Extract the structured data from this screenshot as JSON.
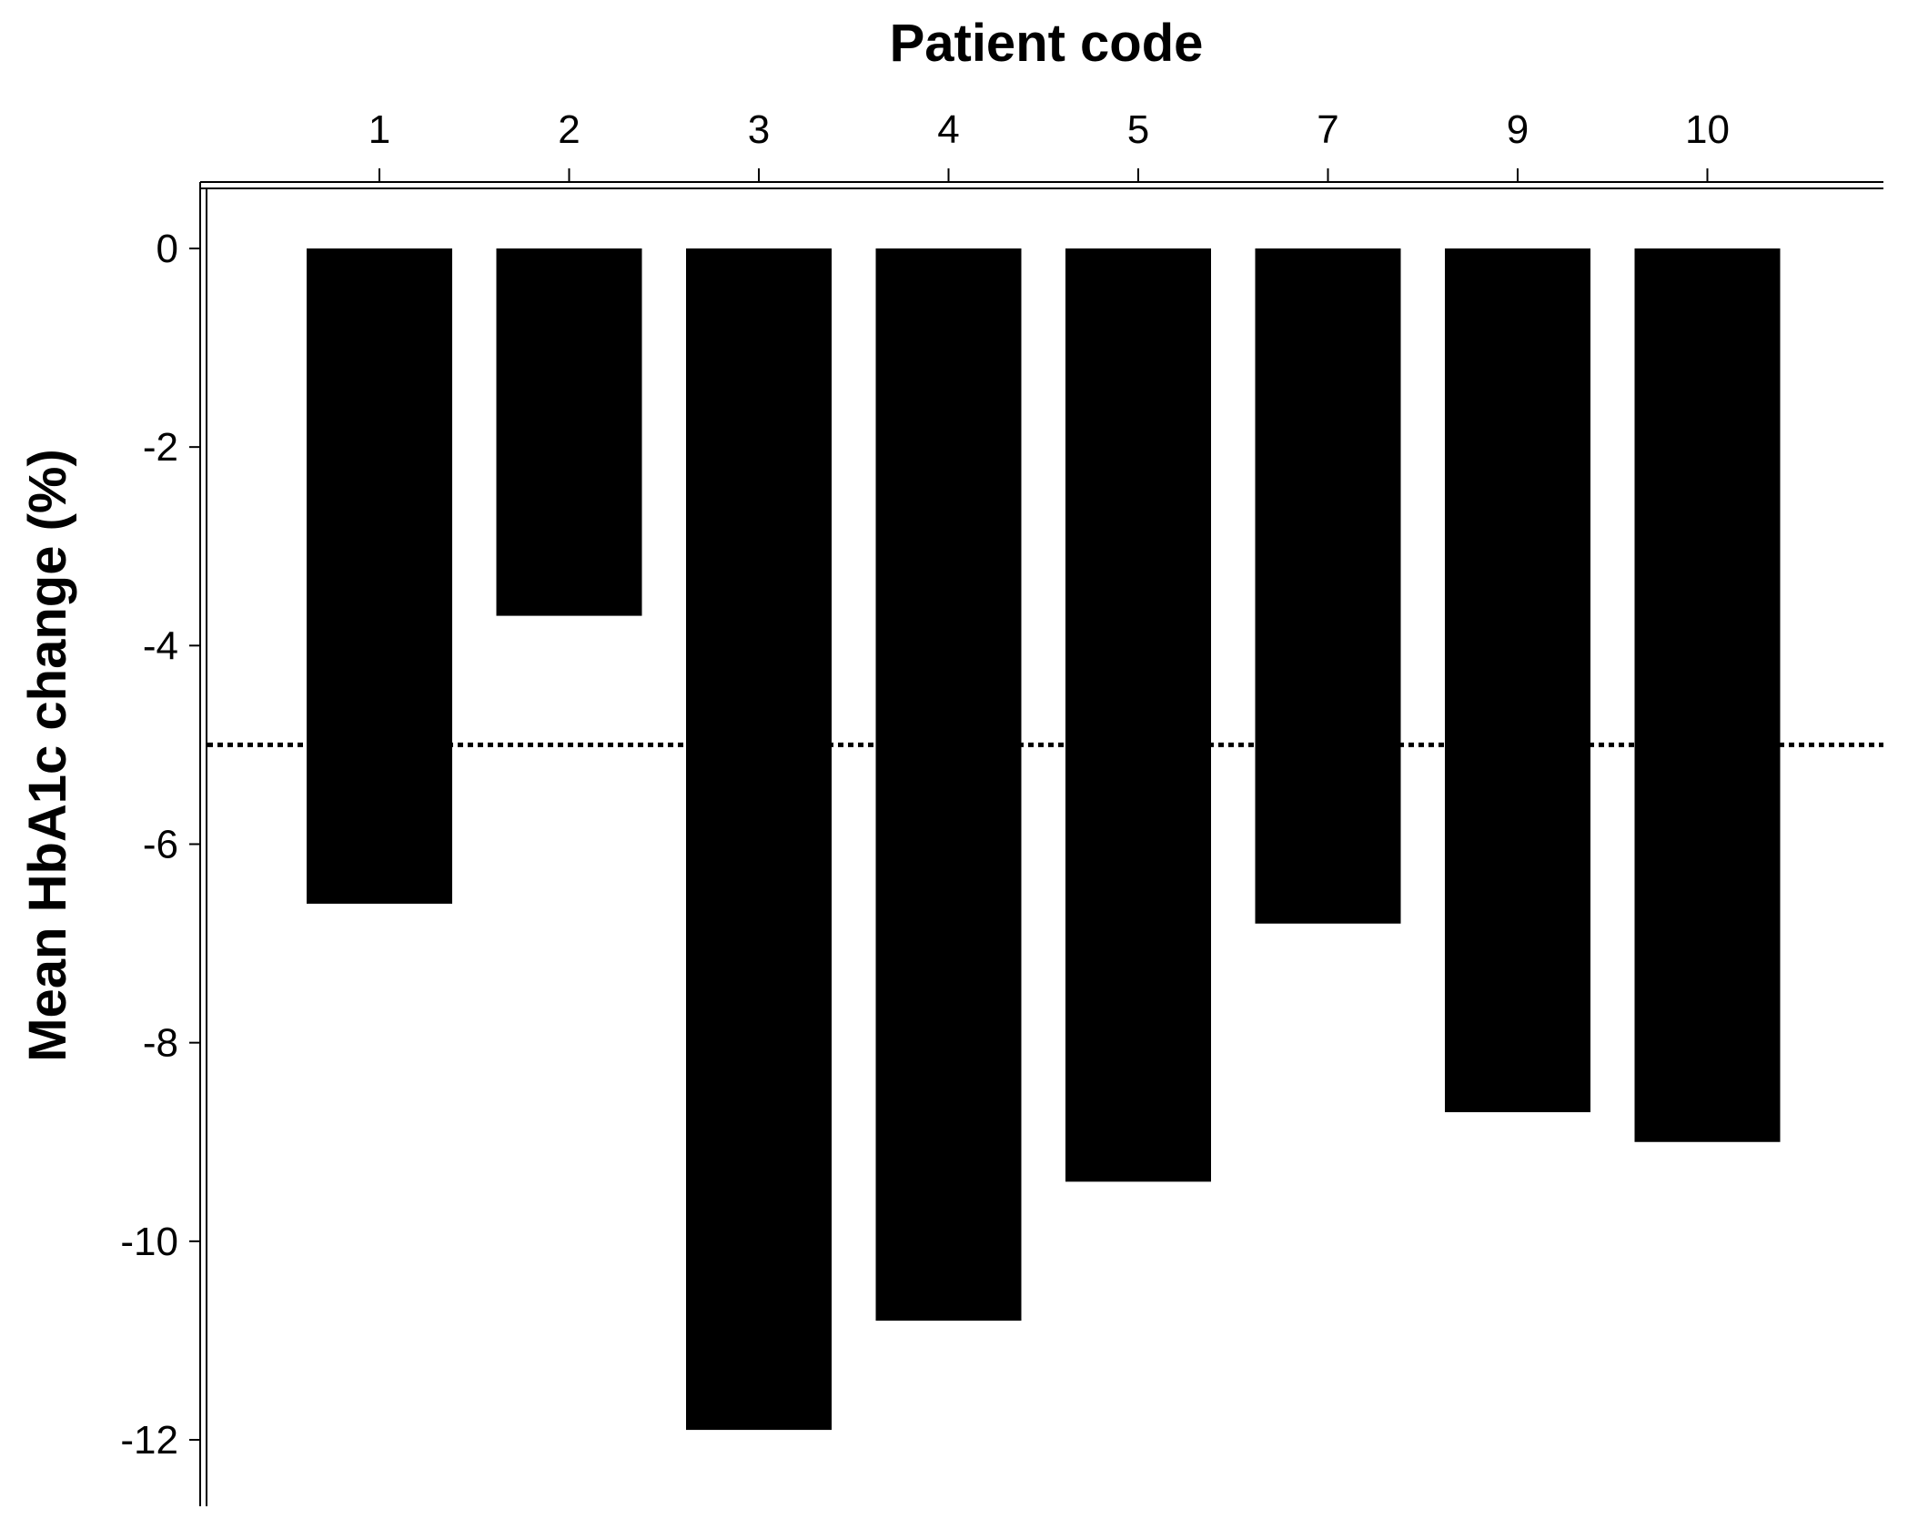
{
  "chart_data": {
    "type": "bar",
    "categories": [
      "1",
      "2",
      "3",
      "4",
      "5",
      "7",
      "9",
      "10"
    ],
    "values": [
      -6.6,
      -3.7,
      -11.9,
      -10.8,
      -9.4,
      -6.8,
      -8.7,
      -9.0
    ],
    "xlabel": "Patient code",
    "ylabel": "Mean HbA1c change (%)",
    "ylim": [
      -12,
      0
    ],
    "yticks": [
      "0",
      "-2",
      "-4",
      "-6",
      "-8",
      "-10",
      "-12"
    ],
    "x_axis_position": "top",
    "reference_line": {
      "value": -5,
      "style": "dotted"
    },
    "grid": false,
    "bar_color": "#000000"
  }
}
